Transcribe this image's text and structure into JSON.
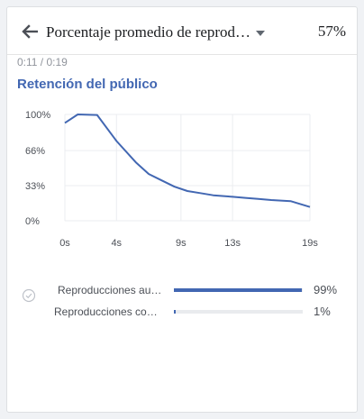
{
  "header": {
    "metric_label": "Porcentaje promedio de reprod…",
    "metric_value": "57%"
  },
  "time_range": "0:11 / 0:19",
  "section_title": "Retención del público",
  "chart_data": {
    "type": "line",
    "title": "",
    "xlabel": "",
    "ylabel": "",
    "x_ticks": [
      "0s",
      "4s",
      "9s",
      "13s",
      "19s"
    ],
    "y_ticks": [
      "100%",
      "66%",
      "33%",
      "0%"
    ],
    "x_range": [
      0,
      19
    ],
    "y_range": [
      0,
      100
    ],
    "grid": true,
    "color": "#4267b2",
    "series": [
      {
        "x": [
          0,
          1,
          2.5,
          4,
          5.5,
          6.5,
          7.5,
          8.5,
          9.5,
          10.5,
          11.5,
          13,
          14,
          15,
          16,
          17.5,
          19
        ],
        "y": [
          92,
          100,
          99.5,
          75,
          55,
          44,
          38,
          32,
          28,
          26,
          24,
          22.5,
          21.5,
          20.5,
          19.5,
          18.5,
          13
        ]
      }
    ]
  },
  "breakdown": [
    {
      "label": "Reproducciones au…",
      "value": "99%",
      "fraction": 0.99
    },
    {
      "label": "Reproducciones co…",
      "value": "1%",
      "fraction": 0.01
    }
  ]
}
